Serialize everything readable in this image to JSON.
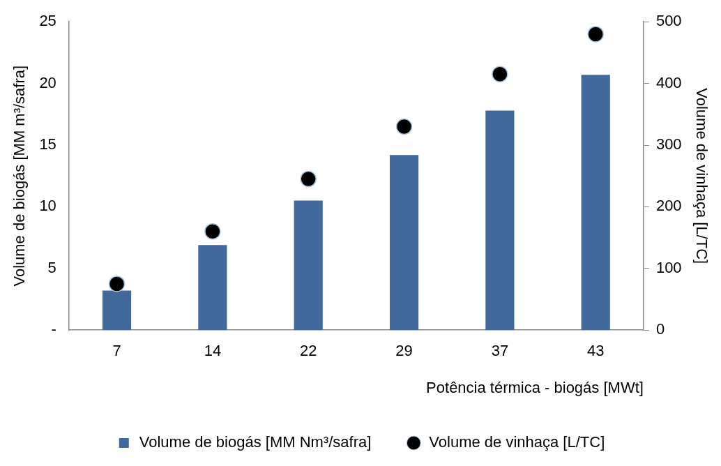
{
  "chart_data": {
    "type": "bar",
    "xlabel": "Potência térmica - biogás [MWt]",
    "ylabel": "Volume de biogás [MM m³/safra]",
    "y2label": "Volume de vinhaça [L/TC]",
    "categories": [
      "7",
      "14",
      "22",
      "29",
      "37",
      "43"
    ],
    "series": [
      {
        "name": "Volume de biogás [MM Nm³/safra]",
        "color": "#41699c",
        "values": [
          3.2,
          6.9,
          10.5,
          14.2,
          17.8,
          20.7
        ]
      },
      {
        "name": "Volume de vinhaça [L/TC]",
        "type": "scatter",
        "axis": "y2",
        "color": "#000000",
        "x": [
          "7",
          "14",
          "22",
          "29",
          "37",
          "43"
        ],
        "values": [
          75,
          160,
          245,
          330,
          415,
          480
        ]
      }
    ],
    "ylim": [
      0,
      25
    ],
    "yticks": [
      {
        "value": 0,
        "label": "-"
      },
      5,
      10,
      15,
      20,
      25
    ],
    "y2lim": [
      0,
      500
    ],
    "y2ticks": [
      0,
      100,
      200,
      300,
      400,
      500
    ],
    "grid": false,
    "legend": "bottom",
    "marker": "circle"
  }
}
